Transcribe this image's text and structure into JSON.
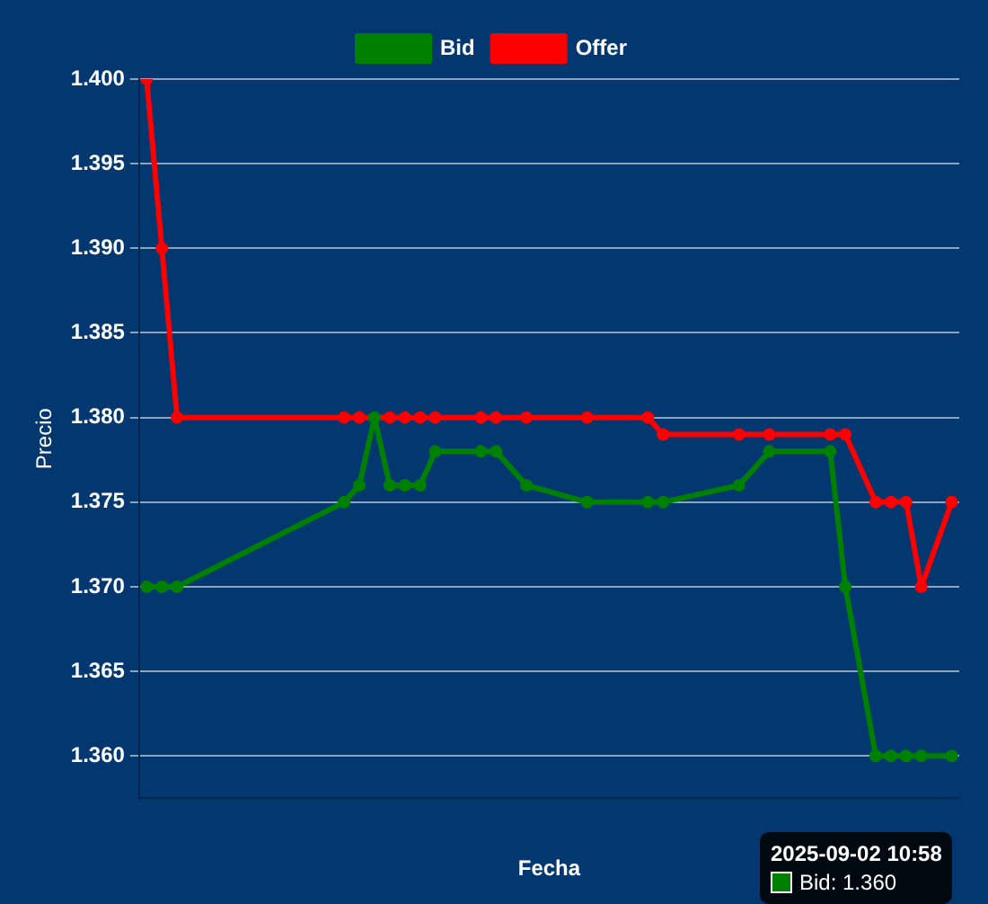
{
  "chart_data": {
    "type": "line",
    "xlabel": "Fecha",
    "ylabel": "Precio",
    "categories": [
      null,
      null,
      null,
      null,
      null,
      null,
      null,
      null,
      null,
      null,
      null,
      null,
      null,
      null,
      null,
      null,
      null,
      null,
      null,
      null,
      null,
      null,
      null,
      null,
      null,
      null,
      null,
      null,
      null,
      null,
      null,
      null,
      null,
      null,
      null,
      null,
      null,
      null,
      null,
      null,
      null,
      null,
      null,
      null,
      null,
      null,
      null,
      null,
      null,
      null,
      null,
      null,
      null,
      null
    ],
    "series": [
      {
        "name": "Bid",
        "color": "#008000",
        "values": [
          1.37,
          1.37,
          1.37,
          null,
          null,
          null,
          null,
          null,
          null,
          null,
          null,
          null,
          null,
          1.375,
          1.376,
          1.38,
          1.376,
          1.376,
          1.376,
          1.378,
          null,
          null,
          1.378,
          1.378,
          null,
          1.376,
          null,
          null,
          null,
          1.375,
          null,
          null,
          null,
          1.375,
          1.375,
          null,
          null,
          null,
          null,
          1.376,
          null,
          1.378,
          null,
          null,
          null,
          1.378,
          1.37,
          null,
          1.36,
          1.36,
          1.36,
          1.36,
          null,
          1.36
        ]
      },
      {
        "name": "Offer",
        "color": "#ff0000",
        "values": [
          1.4,
          1.39,
          1.38,
          null,
          null,
          null,
          null,
          null,
          null,
          null,
          null,
          null,
          null,
          1.38,
          1.38,
          null,
          1.38,
          1.38,
          1.38,
          1.38,
          null,
          null,
          1.38,
          1.38,
          null,
          1.38,
          null,
          null,
          null,
          1.38,
          null,
          null,
          null,
          1.38,
          1.379,
          null,
          null,
          null,
          null,
          1.379,
          null,
          1.379,
          null,
          null,
          null,
          1.379,
          1.379,
          null,
          1.375,
          1.375,
          1.375,
          1.37,
          null,
          1.375
        ]
      }
    ],
    "ylim": [
      1.3575,
      1.4
    ],
    "yticks": [
      {
        "value": 1.36,
        "label": "1.360"
      },
      1.365,
      {
        "value": 1.37,
        "label": "1.370"
      },
      1.375,
      {
        "value": 1.38,
        "label": "1.380"
      },
      1.385,
      {
        "value": 1.39,
        "label": "1.390"
      },
      1.395,
      {
        "value": 1.4,
        "label": "1.400"
      }
    ],
    "grid": "y",
    "legend": "top",
    "marker": "circle",
    "line_style": "solid",
    "annotations": [
      "2025-09-02 10:58",
      "Bid: 1.360"
    ]
  }
}
